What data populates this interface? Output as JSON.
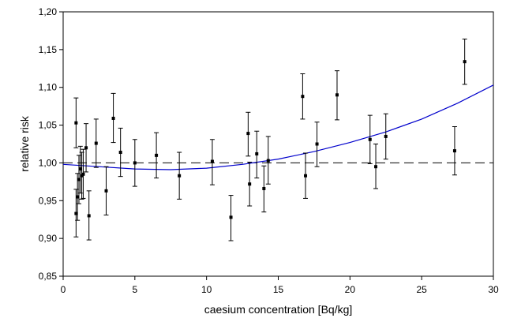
{
  "chart_data": {
    "type": "scatter",
    "title": "",
    "xlabel": "caesium concentration [Bq/kg]",
    "ylabel": "relative risk",
    "xlim": [
      0,
      30
    ],
    "ylim": [
      0.85,
      1.2
    ],
    "x_ticks": [
      0,
      5,
      10,
      15,
      20,
      25,
      30
    ],
    "x_tick_labels": [
      "0",
      "5",
      "10",
      "15",
      "20",
      "25",
      "30"
    ],
    "y_ticks": [
      0.85,
      0.9,
      0.95,
      1.0,
      1.05,
      1.1,
      1.15,
      1.2
    ],
    "y_tick_labels": [
      "0,85",
      "0,90",
      "0,95",
      "1,00",
      "1,05",
      "1,10",
      "1,15",
      "1,20"
    ],
    "grid": false,
    "legend": "none",
    "colors": {
      "points": "#000000",
      "trend": "#0000cc",
      "reference": "#000000"
    },
    "reference_line": {
      "y": 1.0,
      "style": "dashed"
    },
    "series": [
      {
        "type": "points_with_error_bars",
        "points": [
          {
            "x": 0.9,
            "y": 1.053,
            "lo": 1.02,
            "hi": 1.086
          },
          {
            "x": 0.9,
            "y": 0.933,
            "lo": 0.902,
            "hi": 0.965
          },
          {
            "x": 1.0,
            "y": 0.955,
            "lo": 0.924,
            "hi": 0.986
          },
          {
            "x": 1.1,
            "y": 0.978,
            "lo": 0.946,
            "hi": 1.01
          },
          {
            "x": 1.2,
            "y": 0.992,
            "lo": 0.96,
            "hi": 1.022
          },
          {
            "x": 1.3,
            "y": 0.983,
            "lo": 0.952,
            "hi": 1.014
          },
          {
            "x": 1.4,
            "y": 0.985,
            "lo": 0.953,
            "hi": 1.018
          },
          {
            "x": 1.6,
            "y": 1.02,
            "lo": 0.988,
            "hi": 1.052
          },
          {
            "x": 1.8,
            "y": 0.93,
            "lo": 0.898,
            "hi": 0.963
          },
          {
            "x": 2.3,
            "y": 1.026,
            "lo": 0.994,
            "hi": 1.058
          },
          {
            "x": 3.0,
            "y": 0.963,
            "lo": 0.931,
            "hi": 0.995
          },
          {
            "x": 3.5,
            "y": 1.059,
            "lo": 1.027,
            "hi": 1.092
          },
          {
            "x": 4.0,
            "y": 1.014,
            "lo": 0.982,
            "hi": 1.046
          },
          {
            "x": 5.0,
            "y": 1.0,
            "lo": 0.969,
            "hi": 1.031
          },
          {
            "x": 6.5,
            "y": 1.01,
            "lo": 0.98,
            "hi": 1.04
          },
          {
            "x": 8.1,
            "y": 0.983,
            "lo": 0.952,
            "hi": 1.014
          },
          {
            "x": 10.4,
            "y": 1.002,
            "lo": 0.971,
            "hi": 1.031
          },
          {
            "x": 11.7,
            "y": 0.928,
            "lo": 0.897,
            "hi": 0.957
          },
          {
            "x": 12.9,
            "y": 1.039,
            "lo": 1.009,
            "hi": 1.067
          },
          {
            "x": 13.0,
            "y": 0.972,
            "lo": 0.943,
            "hi": 1.001
          },
          {
            "x": 13.5,
            "y": 1.012,
            "lo": 0.98,
            "hi": 1.042
          },
          {
            "x": 14.0,
            "y": 0.966,
            "lo": 0.935,
            "hi": 0.996
          },
          {
            "x": 14.3,
            "y": 1.003,
            "lo": 0.972,
            "hi": 1.035
          },
          {
            "x": 16.7,
            "y": 1.088,
            "lo": 1.058,
            "hi": 1.118
          },
          {
            "x": 16.9,
            "y": 0.983,
            "lo": 0.953,
            "hi": 1.013
          },
          {
            "x": 17.7,
            "y": 1.025,
            "lo": 0.995,
            "hi": 1.054
          },
          {
            "x": 19.1,
            "y": 1.09,
            "lo": 1.057,
            "hi": 1.122
          },
          {
            "x": 21.4,
            "y": 1.031,
            "lo": 0.999,
            "hi": 1.063
          },
          {
            "x": 21.8,
            "y": 0.995,
            "lo": 0.966,
            "hi": 1.025
          },
          {
            "x": 22.5,
            "y": 1.035,
            "lo": 1.005,
            "hi": 1.065
          },
          {
            "x": 27.3,
            "y": 1.016,
            "lo": 0.984,
            "hi": 1.048
          },
          {
            "x": 28.0,
            "y": 1.134,
            "lo": 1.104,
            "hi": 1.164
          }
        ]
      },
      {
        "type": "line",
        "x": [
          0,
          2.5,
          5,
          7.5,
          10,
          12.5,
          15,
          17.5,
          20,
          22.5,
          25,
          27.5,
          30
        ],
        "y": [
          0.998,
          0.995,
          0.992,
          0.991,
          0.993,
          0.998,
          1.005,
          1.015,
          1.027,
          1.041,
          1.058,
          1.079,
          1.103
        ]
      }
    ]
  }
}
